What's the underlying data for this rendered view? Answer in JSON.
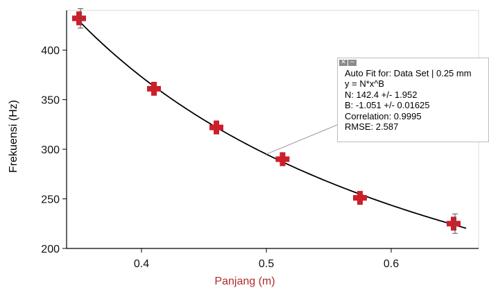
{
  "chart_data": {
    "type": "scatter",
    "xlabel": "Panjang (m)",
    "ylabel": "Frekuensi (Hz)",
    "xlim": [
      0.34,
      0.67
    ],
    "ylim": [
      200,
      440
    ],
    "x_ticks": [
      "0.4",
      "0.5",
      "0.6"
    ],
    "y_ticks": [
      "200",
      "250",
      "300",
      "350",
      "400"
    ],
    "x_tick_values": [
      0.4,
      0.5,
      0.6
    ],
    "y_tick_values": [
      200,
      250,
      300,
      350,
      400
    ],
    "points": [
      {
        "x": 0.35,
        "y": 432
      },
      {
        "x": 0.41,
        "y": 361
      },
      {
        "x": 0.46,
        "y": 322
      },
      {
        "x": 0.513,
        "y": 290
      },
      {
        "x": 0.575,
        "y": 251
      },
      {
        "x": 0.65,
        "y": 225
      }
    ],
    "fit": {
      "N": 142.4,
      "B": -1.051,
      "x_range": [
        0.35,
        0.66
      ]
    },
    "colors": {
      "marker": "#cc1f2b",
      "fit_line": "#000000",
      "xlabel": "#b02a2a",
      "ylabel": "#000000",
      "grid": "#d9d9d9"
    },
    "grid": false,
    "annotation": {
      "icons": [
        "close-icon",
        "minimize-icon"
      ],
      "lines": [
        "Auto Fit for: Data Set | 0.25 mm",
        "y = N*x^B",
        "N: 142.4 +/- 1.952",
        "B: -1.051 +/- 0.01625",
        "Correlation: 0.9995",
        "RMSE: 2.587"
      ]
    }
  }
}
